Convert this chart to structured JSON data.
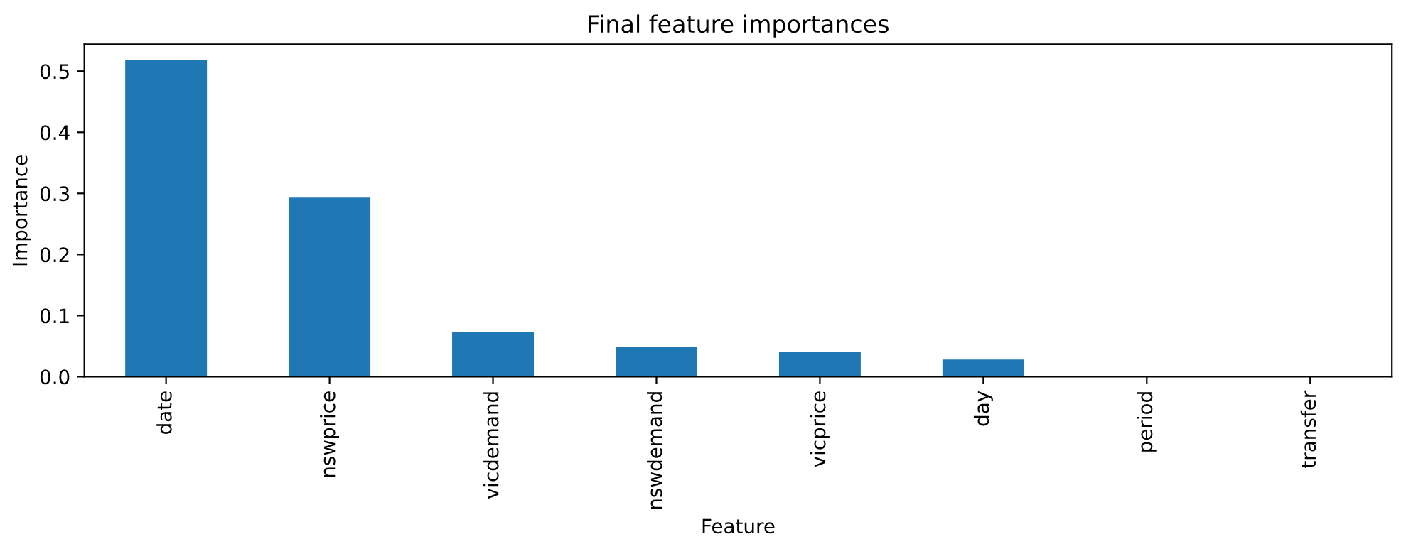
{
  "chart_data": {
    "type": "bar",
    "title": "Final feature importances",
    "xlabel": "Feature",
    "ylabel": "Importance",
    "categories": [
      "date",
      "nswprice",
      "vicdemand",
      "nswdemand",
      "vicprice",
      "day",
      "period",
      "transfer"
    ],
    "values": [
      0.518,
      0.293,
      0.073,
      0.048,
      0.04,
      0.028,
      0.0,
      0.0
    ],
    "color": "#1f77b4",
    "ylim": [
      0,
      0.544
    ],
    "yticks": [
      {
        "value": 0,
        "label": "0.0"
      },
      0.1,
      0.2,
      0.3,
      0.4,
      0.5
    ],
    "grid": false
  }
}
